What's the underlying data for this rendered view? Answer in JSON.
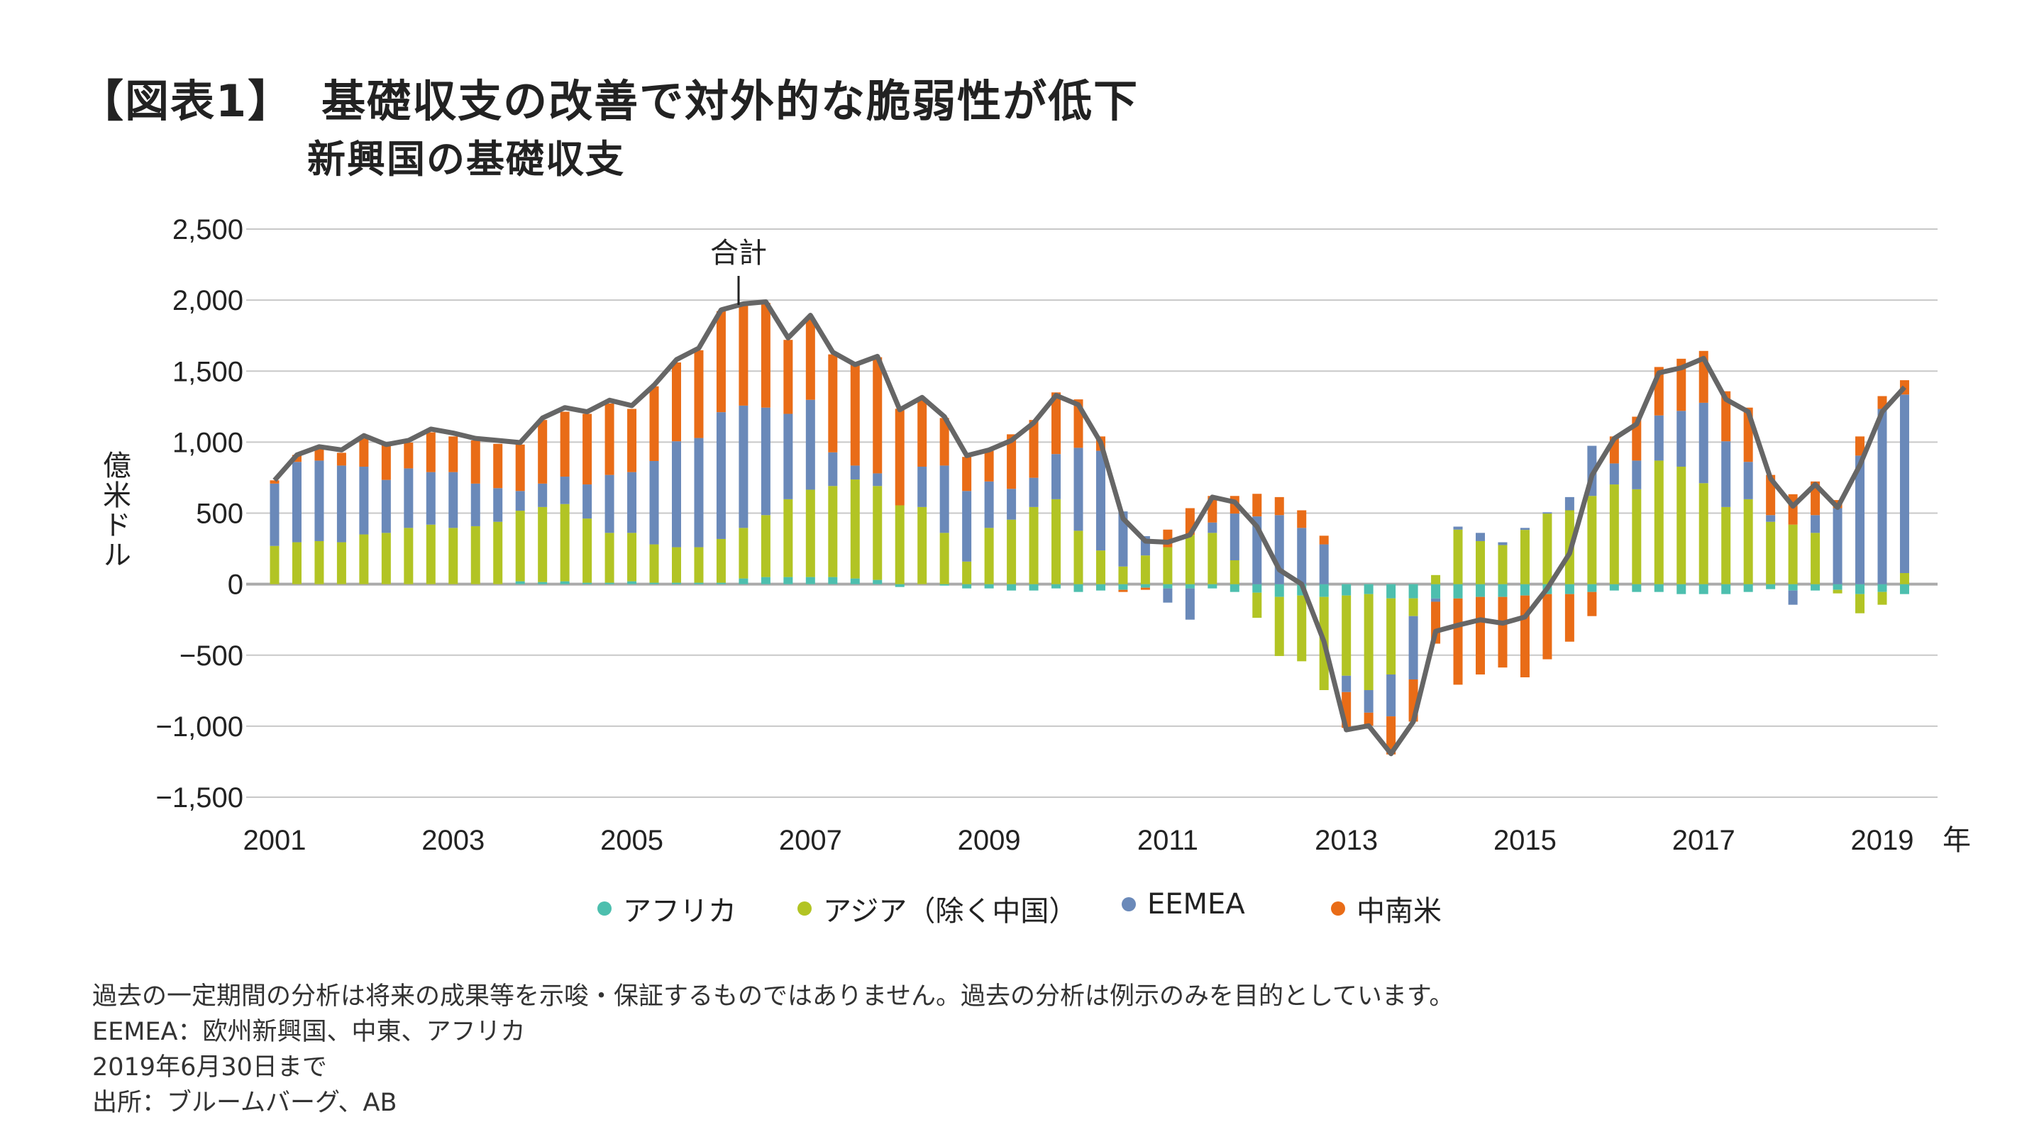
{
  "title": {
    "label": "【図表1】",
    "main": "基礎収支の改善で対外的な脆弱性が低下"
  },
  "subtitle": "新興国の基礎収支",
  "footnotes": [
    "過去の一定期間の分析は将来の成果等を示唆・保証するものではありません。過去の分析は例示のみを目的としています。",
    "EEMEA：欧州新興国、中東、アフリカ",
    "2019年6月30日まで",
    "出所：ブルームバーグ、AB"
  ],
  "chart_data": {
    "type": "bar",
    "stacked": true,
    "ylabel": "億米ドル",
    "xlabel": "年",
    "ylim": [
      -1500,
      2500
    ],
    "y_ticks": [
      2500,
      2000,
      1500,
      1000,
      500,
      0,
      -500,
      -1000,
      -1500
    ],
    "y_tick_labels": [
      "2,500",
      "2,000",
      "1,500",
      "1,000",
      "500",
      "0",
      "−500",
      "−1,000",
      "−1,500"
    ],
    "x_tick_labels": [
      "2001",
      "2003",
      "2005",
      "2007",
      "2009",
      "2011",
      "2013",
      "2015",
      "2017",
      "2019"
    ],
    "grid": true,
    "legend_position": "bottom",
    "annotation": "合計",
    "categories": [
      "2001Q1",
      "2001Q2",
      "2001Q3",
      "2001Q4",
      "2002Q1",
      "2002Q2",
      "2002Q3",
      "2002Q4",
      "2003Q1",
      "2003Q2",
      "2003Q3",
      "2003Q4",
      "2004Q1",
      "2004Q2",
      "2004Q3",
      "2004Q4",
      "2005Q1",
      "2005Q2",
      "2005Q3",
      "2005Q4",
      "2006Q1",
      "2006Q2",
      "2006Q3",
      "2006Q4",
      "2007Q1",
      "2007Q2",
      "2007Q3",
      "2007Q4",
      "2008Q1",
      "2008Q2",
      "2008Q3",
      "2008Q4",
      "2009Q1",
      "2009Q2",
      "2009Q3",
      "2009Q4",
      "2010Q1",
      "2010Q2",
      "2010Q3",
      "2010Q4",
      "2011Q1",
      "2011Q2",
      "2011Q3",
      "2011Q4",
      "2012Q1",
      "2012Q2",
      "2012Q3",
      "2012Q4",
      "2013Q1",
      "2013Q2",
      "2013Q3",
      "2013Q4",
      "2014Q1",
      "2014Q2",
      "2014Q3",
      "2014Q4",
      "2015Q1",
      "2015Q2",
      "2015Q3",
      "2015Q4",
      "2016Q1",
      "2016Q2",
      "2016Q3",
      "2016Q4",
      "2017Q1",
      "2017Q2",
      "2017Q3",
      "2017Q4",
      "2018Q1",
      "2018Q2",
      "2018Q3",
      "2018Q4",
      "2019Q1",
      "2019Q2"
    ],
    "series": [
      {
        "name": "アフリカ",
        "color": "#4dbfae",
        "values": [
          0,
          0,
          0,
          0,
          0,
          0,
          0,
          0,
          0,
          0,
          0,
          20,
          15,
          20,
          10,
          10,
          20,
          10,
          10,
          10,
          10,
          40,
          50,
          50,
          50,
          50,
          40,
          30,
          -20,
          0,
          -10,
          -30,
          -30,
          -45,
          -45,
          -30,
          -55,
          -45,
          -40,
          -25,
          -30,
          -30,
          -30,
          -55,
          -60,
          -90,
          -80,
          -90,
          -80,
          -70,
          -100,
          -100,
          -101,
          -101,
          -90,
          -90,
          -80,
          -70,
          -70,
          -55,
          -45,
          -55,
          -55,
          -70,
          -70,
          -70,
          -55,
          -35,
          -45,
          -45,
          -40,
          -70,
          -55,
          -70
        ]
      },
      {
        "name": "アジア（除く中国）",
        "color": "#b2c424",
        "values": [
          269,
          295,
          303,
          295,
          350,
          361,
          396,
          419,
          396,
          408,
          439,
          497,
          528,
          544,
          452,
          351,
          341,
          270,
          250,
          250,
          308,
          356,
          436,
          548,
          615,
          641,
          697,
          661,
          555,
          543,
          361,
          159,
          396,
          454,
          543,
          598,
          376,
          237,
          124,
          202,
          260,
          347,
          361,
          168,
          -177,
          -416,
          -463,
          -656,
          -565,
          -676,
          -536,
          -125,
          64,
          384,
          303,
          275,
          382,
          497,
          520,
          621,
          702,
          668,
          870,
          827,
          711,
          543,
          598,
          439,
          419,
          361,
          -25,
          -135,
          -90,
          78
        ]
      },
      {
        "name": "EEMEA",
        "color": "#6a89b9",
        "values": [
          439,
          566,
          567,
          540,
          477,
          373,
          419,
          370,
          393,
          300,
          237,
          139,
          165,
          193,
          240,
          408,
          428,
          587,
          746,
          769,
          893,
          861,
          757,
          601,
          633,
          237,
          98,
          89,
          0,
          284,
          474,
          497,
          327,
          217,
          206,
          318,
          584,
          702,
          388,
          136,
          -100,
          -220,
          73,
          329,
          477,
          486,
          396,
          280,
          -115,
          -159,
          -295,
          -446,
          -23,
          21,
          58,
          20,
          14,
          9,
          93,
          353,
          148,
          202,
          318,
          393,
          566,
          463,
          263,
          47,
          -100,
          125,
          535,
          905,
          1234,
          1257
        ]
      },
      {
        "name": "中南米",
        "color": "#e96c17",
        "values": [
          23,
          49,
          84,
          90,
          199,
          243,
          182,
          280,
          251,
          304,
          312,
          327,
          448,
          457,
          497,
          503,
          445,
          526,
          555,
          618,
          711,
          708,
          737,
          521,
          566,
          690,
          711,
          818,
          680,
          474,
          335,
          240,
          216,
          384,
          407,
          434,
          341,
          101,
          -15,
          -15,
          124,
          188,
          187,
          124,
          159,
          127,
          124,
          61,
          -252,
          -92,
          -268,
          -297,
          -295,
          -607,
          -546,
          -497,
          -576,
          -459,
          -335,
          -170,
          190,
          309,
          341,
          367,
          365,
          352,
          382,
          283,
          214,
          237,
          57,
          135,
          90,
          101
        ]
      }
    ],
    "total": {
      "name": "合計",
      "color": "#666666",
      "values": [
        731,
        910,
        968,
        945,
        1046,
        983,
        1012,
        1092,
        1064,
        1026,
        1012,
        997,
        1170,
        1243,
        1214,
        1295,
        1257,
        1402,
        1581,
        1662,
        1931,
        1974,
        1988,
        1734,
        1893,
        1633,
        1546,
        1604,
        1228,
        1315,
        1179,
        905,
        945,
        1012,
        1136,
        1329,
        1263,
        997,
        462,
        303,
        295,
        347,
        613,
        578,
        405,
        101,
        0,
        -405,
        -1026,
        -997,
        -1194,
        -968,
        -332,
        -289,
        -251,
        -275,
        -231,
        -30,
        217,
        766,
        1026,
        1127,
        1488,
        1523,
        1590,
        1301,
        1214,
        743,
        549,
        702,
        540,
        838,
        1214,
        1387
      ]
    }
  }
}
